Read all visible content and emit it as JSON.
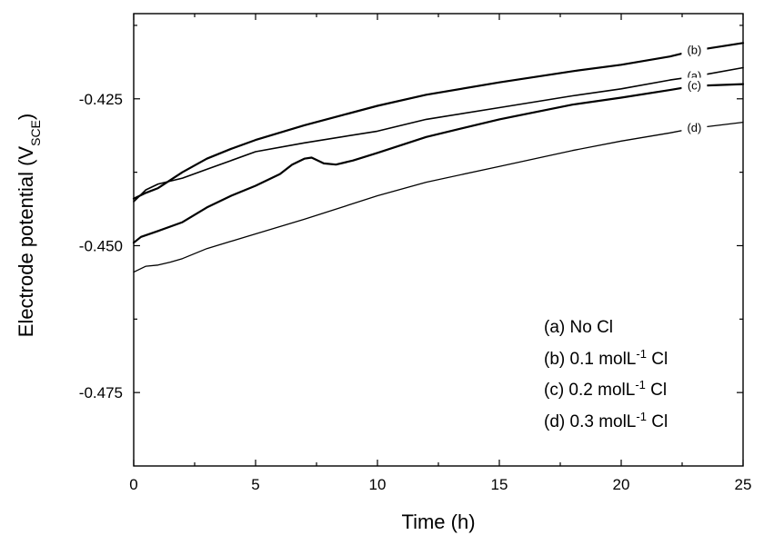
{
  "chart_data": {
    "type": "line",
    "xlabel": "Time (h)",
    "ylabel_main": "Electrode potential (V",
    "ylabel_sub": "SCE",
    "ylabel_close": ")",
    "xlim": [
      0,
      25
    ],
    "ylim": [
      -0.4875,
      -0.4105
    ],
    "xticks": [
      0,
      5,
      10,
      15,
      20,
      25
    ],
    "xtick_labels": [
      "0",
      "5",
      "10",
      "15",
      "20",
      "25"
    ],
    "yticks": [
      -0.475,
      -0.45,
      -0.425
    ],
    "ytick_labels": [
      "-0.475",
      "-0.450",
      "-0.425"
    ],
    "grid": false,
    "legend_position": "bottom-right",
    "series": [
      {
        "id": "a",
        "tag": "(a)",
        "legend_label": "(a) No Cl",
        "legend_sup": "",
        "legend_tail": "",
        "stroke": 1.6,
        "x": [
          0,
          0.5,
          1,
          2,
          3,
          4,
          5,
          7,
          10,
          12,
          15,
          18,
          20,
          22,
          23,
          25
        ],
        "y": [
          -0.4425,
          -0.4405,
          -0.4395,
          -0.4385,
          -0.437,
          -0.4355,
          -0.434,
          -0.4325,
          -0.4305,
          -0.4285,
          -0.4265,
          -0.4245,
          -0.4233,
          -0.4218,
          -0.4212,
          -0.4197
        ]
      },
      {
        "id": "b",
        "tag": "(b)",
        "legend_label": "(b) 0.1 molL",
        "legend_sup": "-1",
        "legend_tail": " Cl",
        "stroke": 2.2,
        "x": [
          0,
          0.5,
          1,
          2,
          3,
          4,
          5,
          7,
          10,
          12,
          15,
          18,
          20,
          22,
          23,
          25
        ],
        "y": [
          -0.442,
          -0.441,
          -0.4402,
          -0.4375,
          -0.4352,
          -0.4335,
          -0.432,
          -0.4295,
          -0.4262,
          -0.4243,
          -0.4222,
          -0.4203,
          -0.4192,
          -0.4178,
          -0.4168,
          -0.4155
        ]
      },
      {
        "id": "c",
        "tag": "(c)",
        "legend_label": "(c) 0.2 molL",
        "legend_sup": "-1",
        "legend_tail": " Cl",
        "stroke": 2.2,
        "x": [
          0,
          0.3,
          1,
          2,
          3,
          4,
          5,
          6,
          6.5,
          7,
          7.3,
          7.8,
          8.3,
          9,
          10,
          12,
          15,
          18,
          20,
          22,
          23,
          25
        ],
        "y": [
          -0.4495,
          -0.4485,
          -0.4475,
          -0.446,
          -0.4435,
          -0.4415,
          -0.4398,
          -0.4378,
          -0.4362,
          -0.4352,
          -0.435,
          -0.436,
          -0.4362,
          -0.4355,
          -0.4342,
          -0.4315,
          -0.4285,
          -0.426,
          -0.4248,
          -0.4235,
          -0.4228,
          -0.4225
        ]
      },
      {
        "id": "d",
        "tag": "(d)",
        "legend_label": "(d) 0.3 molL",
        "legend_sup": "-1",
        "legend_tail": " Cl",
        "stroke": 1.3,
        "x": [
          0,
          0.5,
          1,
          1.5,
          2,
          3,
          5,
          7,
          10,
          12,
          15,
          18,
          20,
          22,
          23,
          25
        ],
        "y": [
          -0.4545,
          -0.4535,
          -0.4533,
          -0.4528,
          -0.4522,
          -0.4505,
          -0.448,
          -0.4455,
          -0.4415,
          -0.4392,
          -0.4365,
          -0.4338,
          -0.4322,
          -0.4308,
          -0.43,
          -0.429
        ]
      }
    ]
  }
}
